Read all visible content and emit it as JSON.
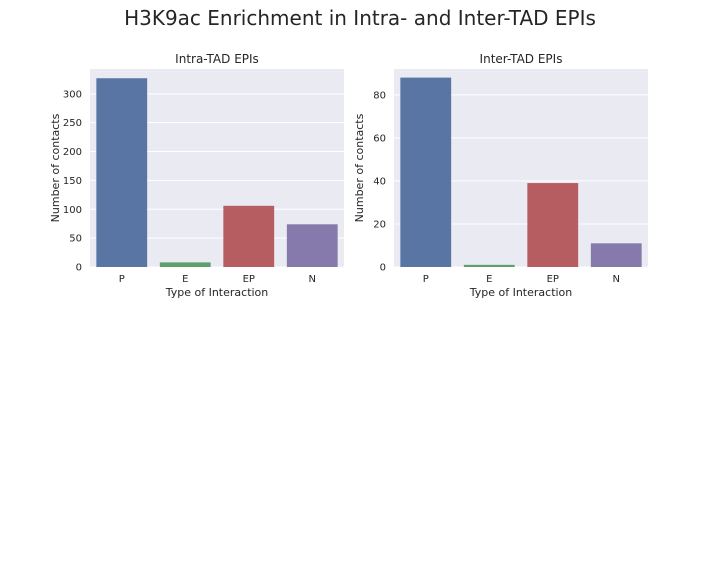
{
  "figure": {
    "title": "H3K9ac Enrichment in Intra- and Inter-TAD EPIs",
    "background": "#ffffff",
    "axes_facecolor": "#eaeaf2",
    "grid_color": "#ffffff"
  },
  "chart_data": [
    {
      "type": "bar",
      "title": "Intra-TAD EPIs",
      "xlabel": "Type of Interaction",
      "ylabel": "Number of contacts",
      "categories": [
        "P",
        "E",
        "EP",
        "N"
      ],
      "values": [
        327,
        8,
        106,
        74
      ],
      "colors": [
        "#5875a4",
        "#5f9e6e",
        "#b55d60",
        "#857aab"
      ],
      "ylim": [
        0,
        343
      ],
      "yticks": [
        0,
        50,
        100,
        150,
        200,
        250,
        300
      ],
      "grid": true,
      "legend": "none"
    },
    {
      "type": "bar",
      "title": "Inter-TAD EPIs",
      "xlabel": "Type of Interaction",
      "ylabel": "Number of contacts",
      "categories": [
        "P",
        "E",
        "EP",
        "N"
      ],
      "values": [
        88,
        1,
        39,
        11
      ],
      "colors": [
        "#5875a4",
        "#5f9e6e",
        "#b55d60",
        "#857aab"
      ],
      "ylim": [
        0,
        92
      ],
      "yticks": [
        0,
        20,
        40,
        60,
        80
      ],
      "grid": true,
      "legend": "none"
    }
  ]
}
